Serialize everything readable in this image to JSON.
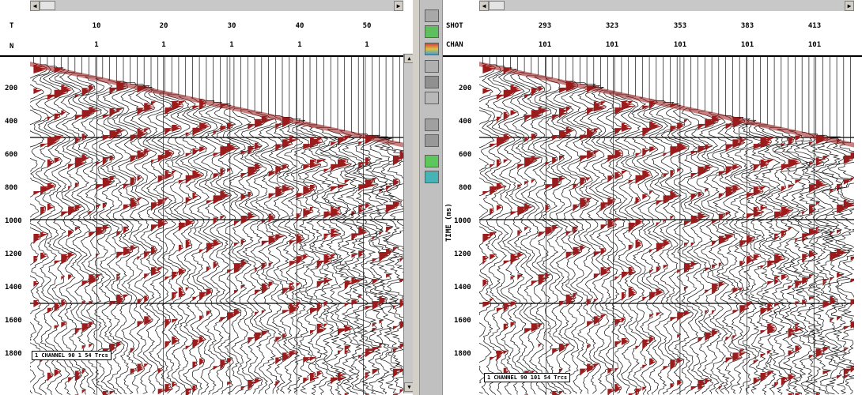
{
  "left_panel": {
    "header_labels": [
      "T",
      "N"
    ],
    "header_row1": [
      "10",
      "20",
      "30",
      "40",
      "50"
    ],
    "header_row2": [
      "1",
      "1",
      "1",
      "1",
      "1"
    ],
    "y_labels": [
      "200",
      "400",
      "600",
      "800",
      "1000",
      "1200",
      "1400",
      "1600",
      "1800"
    ],
    "status": "1 CHANNEL 90 1 54 Trcs"
  },
  "right_panel": {
    "header_labels": [
      "SHOT",
      "CHAN"
    ],
    "header_row1": [
      "293",
      "323",
      "353",
      "383",
      "413"
    ],
    "header_row2": [
      "101",
      "101",
      "101",
      "101",
      "101"
    ],
    "y_axis_title": "TIME (ms)",
    "y_labels": [
      "200",
      "400",
      "600",
      "800",
      "1000",
      "1200",
      "1400",
      "1600",
      "1800"
    ],
    "status": "1 CHANNEL 90 101 54 Trcs"
  },
  "toolbar": {
    "tools": [
      "select-tool-icon",
      "green-tool-icon",
      "color-palette-icon",
      "wiggle-display-icon",
      "density-display-icon",
      "spectrum-icon",
      "zoom-icon",
      "filter-icon",
      "green-run-icon",
      "cyan-apply-icon"
    ]
  },
  "colors": {
    "trace": "#111111",
    "fill": "#9b1c1c",
    "grid": "#000000",
    "background": "#ffffff"
  }
}
